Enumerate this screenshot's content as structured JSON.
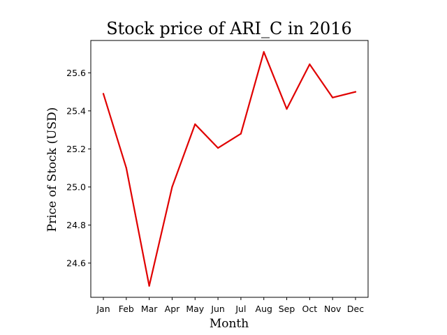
{
  "chart_data": {
    "type": "line",
    "title": "Stock price of ARI_C in 2016",
    "xlabel": "Month",
    "ylabel": "Price of Stock (USD)",
    "categories": [
      "Jan",
      "Feb",
      "Mar",
      "Apr",
      "May",
      "Jun",
      "Jul",
      "Aug",
      "Sep",
      "Oct",
      "Nov",
      "Dec"
    ],
    "series": [
      {
        "values": [
          25.49,
          25.1,
          24.48,
          25.0,
          25.33,
          25.205,
          25.28,
          25.71,
          25.41,
          25.645,
          25.47,
          25.5
        ],
        "color": "#e00000"
      }
    ],
    "ylim": [
      24.42,
      25.77
    ],
    "yticks": [
      24.6,
      24.8,
      25.0,
      25.2,
      25.4,
      25.6
    ],
    "ytick_labels": [
      "24.6",
      "24.8",
      "25.0",
      "25.2",
      "25.4",
      "25.6"
    ],
    "grid": false,
    "legend": "none"
  }
}
